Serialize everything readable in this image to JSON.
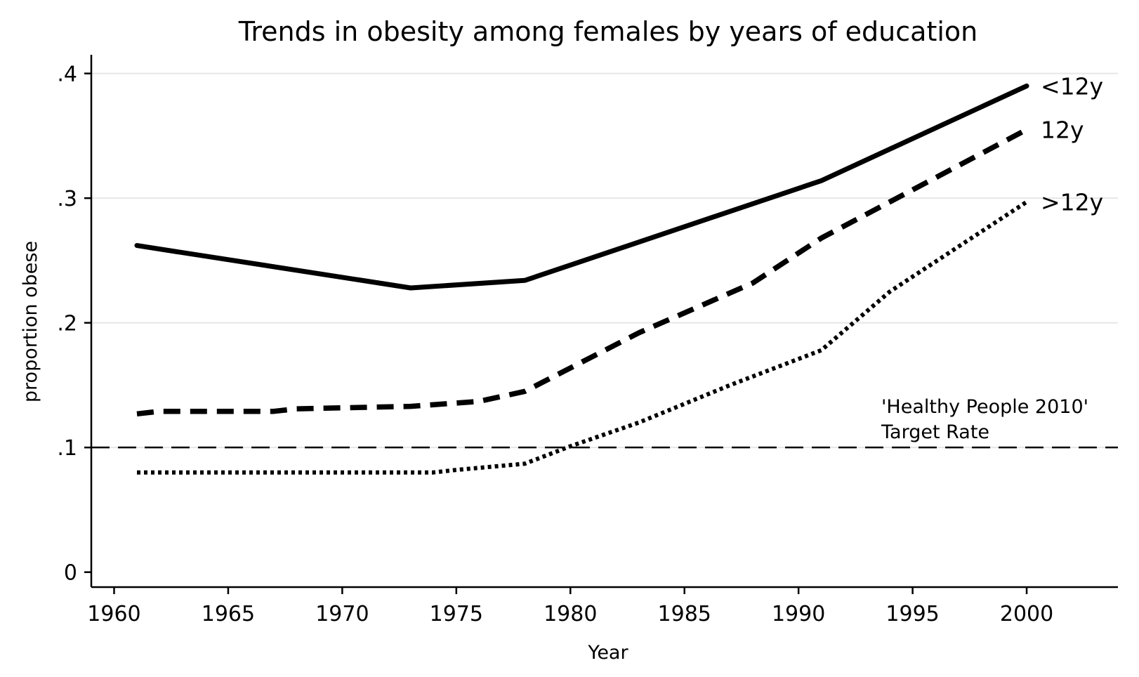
{
  "chart_data": {
    "type": "line",
    "title": "Trends in obesity among females by years of education",
    "xlabel": "Year",
    "ylabel": "proportion obese",
    "xlim": [
      1959,
      2004
    ],
    "ylim": [
      -0.012,
      0.415
    ],
    "xticks": [
      1960,
      1965,
      1970,
      1975,
      1980,
      1985,
      1990,
      1995,
      2000
    ],
    "yticks": [
      {
        "value": 0,
        "label": "0"
      },
      {
        "value": 0.1,
        "label": ".1"
      },
      {
        "value": 0.2,
        "label": ".2"
      },
      {
        "value": 0.3,
        "label": ".3"
      },
      {
        "value": 0.4,
        "label": ".4"
      }
    ],
    "grid": true,
    "series": [
      {
        "name": "<12y",
        "style": "solid",
        "x": [
          1961,
          1973,
          1978,
          1991,
          2000
        ],
        "y": [
          0.262,
          0.228,
          0.234,
          0.314,
          0.39
        ]
      },
      {
        "name": "12y",
        "style": "dashed",
        "x": [
          1961,
          1962,
          1967,
          1968,
          1973,
          1976,
          1978,
          1983,
          1988,
          1991,
          2000
        ],
        "y": [
          0.127,
          0.129,
          0.129,
          0.131,
          0.133,
          0.137,
          0.145,
          0.192,
          0.232,
          0.268,
          0.355
        ]
      },
      {
        "name": ">12y",
        "style": "dotted",
        "x": [
          1961,
          1974,
          1975,
          1978,
          1980,
          1983,
          1987,
          1991,
          1994,
          2000
        ],
        "y": [
          0.08,
          0.08,
          0.082,
          0.087,
          0.101,
          0.12,
          0.15,
          0.178,
          0.225,
          0.297
        ]
      }
    ],
    "reference_line": {
      "y": 0.1,
      "style": "long-dash",
      "label_line1": "'Healthy People 2010'",
      "label_line2": "Target Rate"
    },
    "colors": {
      "line": "#000000",
      "grid": "#e6e6e6",
      "background": "#ffffff"
    }
  }
}
